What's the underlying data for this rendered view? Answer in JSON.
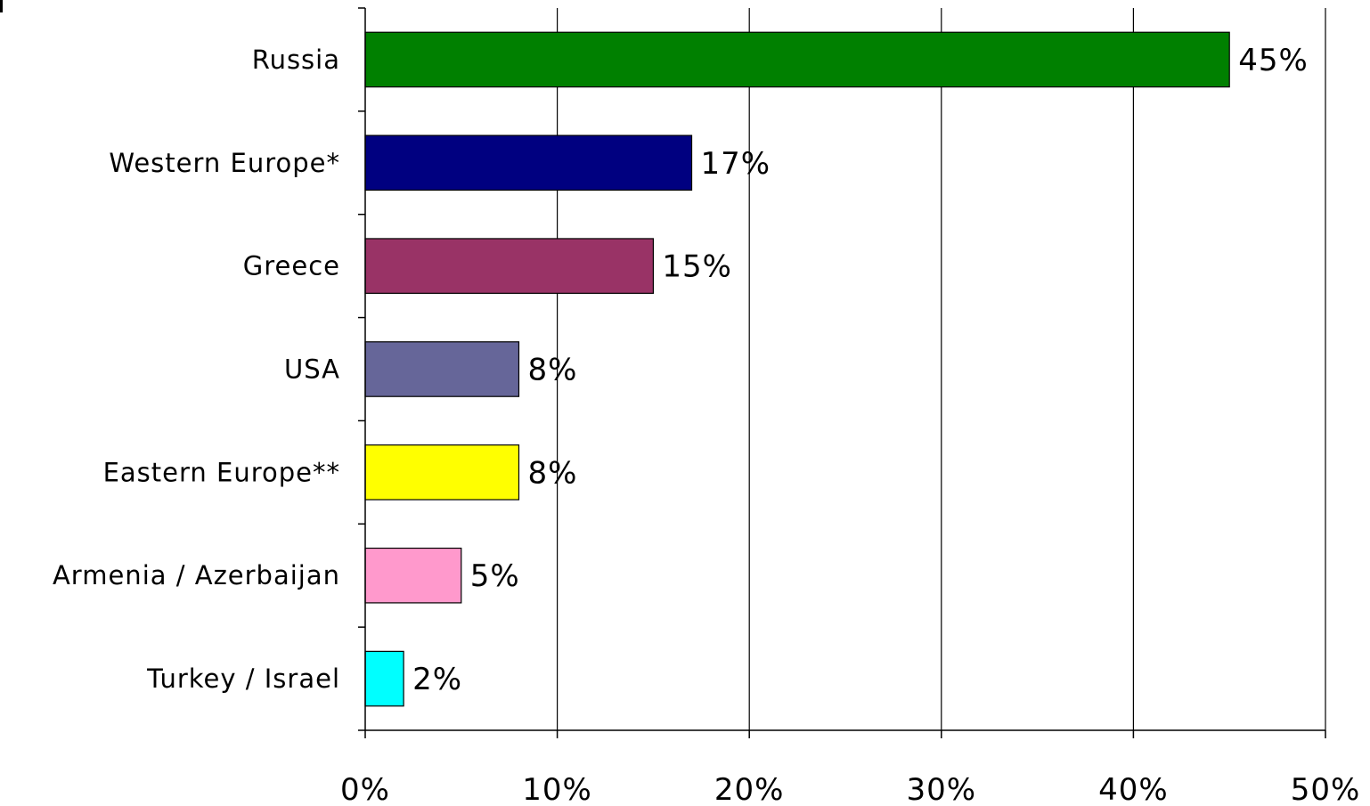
{
  "chart_data": {
    "type": "bar",
    "orientation": "horizontal",
    "categories": [
      "Russia",
      "Western Europe*",
      "Greece",
      "USA",
      "Eastern Europe**",
      "Armenia / Azerbaijan",
      "Turkey / Israel"
    ],
    "values": [
      45,
      17,
      15,
      8,
      8,
      5,
      2
    ],
    "value_labels": [
      "45%",
      "17%",
      "15%",
      "8%",
      "8%",
      "5%",
      "2%"
    ],
    "colors": [
      "#008000",
      "#000080",
      "#993366",
      "#666699",
      "#ffff00",
      "#ff99cc",
      "#00ffff"
    ],
    "title": "",
    "xlabel": "",
    "ylabel": "",
    "xlim": [
      0,
      50
    ],
    "x_ticks": [
      0,
      10,
      20,
      30,
      40,
      50
    ],
    "x_tick_labels": [
      "0%",
      "10%",
      "20%",
      "30%",
      "40%",
      "50%"
    ],
    "grid": "vertical",
    "legend": "none"
  }
}
